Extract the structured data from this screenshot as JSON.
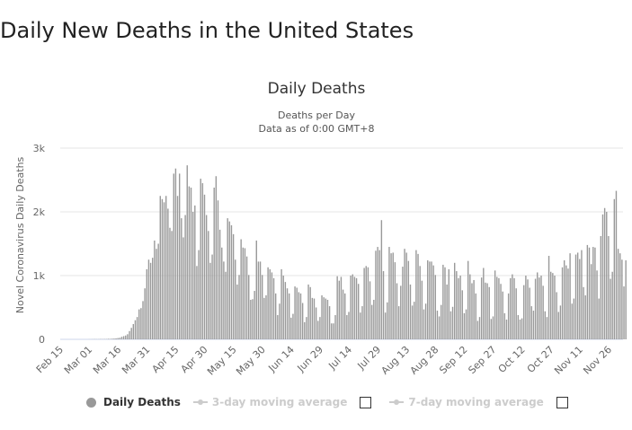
{
  "page_title": "Daily New Deaths in the United States",
  "chart_data": {
    "type": "bar",
    "title": "Daily Deaths",
    "subtitle_lines": [
      "Deaths per Day",
      "Data as of 0:00 GMT+8"
    ],
    "ylabel": "Novel Coronavirus Daily Deaths",
    "xlabel": "",
    "ylim": [
      0,
      3000
    ],
    "y_ticks": [
      {
        "v": 0,
        "label": "0"
      },
      {
        "v": 1000,
        "label": "1k"
      },
      {
        "v": 2000,
        "label": "2k"
      },
      {
        "v": 3000,
        "label": "3k"
      }
    ],
    "x_tick_labels": [
      "Feb 15",
      "Mar 01",
      "Mar 16",
      "Mar 31",
      "Apr 15",
      "Apr 30",
      "May 15",
      "May 30",
      "Jun 14",
      "Jun 29",
      "Jul 14",
      "Jul 29",
      "Aug 13",
      "Aug 28",
      "Sep 12",
      "Sep 27",
      "Oct 12",
      "Oct 27",
      "Nov 11",
      "Nov 26"
    ],
    "x_start": "Feb 15",
    "x_interval_days": 1,
    "grid": true,
    "bar_color": "#999999",
    "series": [
      {
        "name": "Daily Deaths",
        "values": [
          0,
          0,
          0,
          0,
          0,
          0,
          0,
          0,
          0,
          0,
          0,
          0,
          0,
          0,
          0,
          1,
          1,
          2,
          3,
          2,
          2,
          4,
          3,
          4,
          4,
          8,
          7,
          10,
          12,
          15,
          20,
          25,
          40,
          50,
          60,
          80,
          130,
          180,
          240,
          300,
          350,
          470,
          490,
          600,
          800,
          1100,
          1250,
          1200,
          1280,
          1550,
          1420,
          1500,
          2250,
          2200,
          2150,
          2250,
          2050,
          1750,
          1700,
          2600,
          2680,
          2250,
          2600,
          1900,
          1600,
          1950,
          2730,
          2400,
          2380,
          2000,
          2100,
          1150,
          1400,
          2520,
          2450,
          2270,
          1950,
          1700,
          1200,
          1330,
          2380,
          2560,
          2180,
          1720,
          1440,
          1220,
          1060,
          1900,
          1850,
          1790,
          1650,
          1250,
          860,
          1010,
          1570,
          1440,
          1430,
          1300,
          1010,
          620,
          630,
          760,
          1550,
          1220,
          1220,
          1010,
          650,
          690,
          1130,
          1100,
          1050,
          960,
          720,
          380,
          560,
          1100,
          1000,
          900,
          800,
          720,
          340,
          400,
          830,
          810,
          740,
          720,
          570,
          270,
          350,
          860,
          820,
          650,
          640,
          500,
          290,
          350,
          690,
          660,
          640,
          620,
          520,
          250,
          250,
          380,
          990,
          920,
          980,
          780,
          720,
          380,
          430,
          1000,
          1020,
          980,
          960,
          870,
          420,
          520,
          1120,
          1150,
          1130,
          910,
          540,
          620,
          1390,
          1450,
          1400,
          1870,
          1070,
          420,
          580,
          1450,
          1350,
          1360,
          1210,
          880,
          520,
          840,
          1140,
          1420,
          1360,
          1230,
          860,
          530,
          590,
          1400,
          1340,
          1150,
          920,
          470,
          560,
          1240,
          1220,
          1220,
          1160,
          1010,
          450,
          360,
          540,
          1170,
          1130,
          860,
          1100,
          440,
          510,
          1200,
          1070,
          960,
          1000,
          770,
          410,
          470,
          1230,
          1020,
          880,
          930,
          720,
          290,
          350,
          970,
          1120,
          890,
          880,
          820,
          320,
          360,
          1080,
          980,
          960,
          870,
          750,
          410,
          310,
          720,
          960,
          1020,
          960,
          800,
          380,
          310,
          330,
          850,
          1000,
          940,
          810,
          520,
          450,
          950,
          1050,
          970,
          1000,
          840,
          440,
          350,
          1310,
          1060,
          1040,
          1000,
          740,
          430,
          530,
          1130,
          1240,
          1160,
          1110,
          1350,
          560,
          640,
          1330,
          1360,
          1260,
          1400,
          820,
          690,
          1480,
          1440,
          1180,
          1450,
          1440,
          1080,
          640,
          1620,
          1960,
          2060,
          2000,
          1620,
          950,
          1060,
          2200,
          2330,
          1420,
          1350,
          1250,
          830,
          1240
        ]
      }
    ],
    "legend": {
      "position": "bottom",
      "items": [
        {
          "label": "Daily Deaths",
          "enabled": true,
          "color": "#999999"
        },
        {
          "label": "3-day moving average",
          "enabled": false,
          "color": "#cccccc"
        },
        {
          "label": "7-day moving average",
          "enabled": false,
          "color": "#cccccc"
        }
      ]
    }
  }
}
